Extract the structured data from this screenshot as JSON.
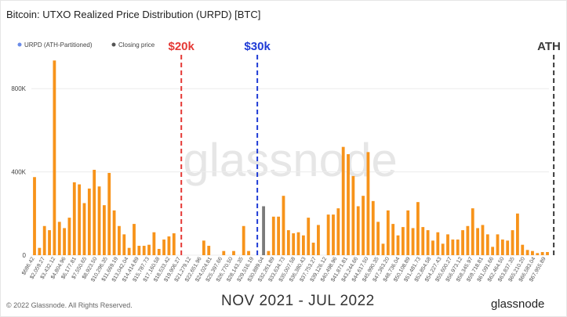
{
  "title": "Bitcoin: UTXO Realized Price Distribution (URPD) [BTC]",
  "footer": {
    "copyright": "© 2022 Glassnode. All Rights Reserved.",
    "period": "NOV 2021 - JUL 2022",
    "brand": "glassnode"
  },
  "watermark": "glassnode",
  "colors": {
    "bar": "#f7931a",
    "closing_bar": "#7a7a7a",
    "marker_20k": "#e53935",
    "marker_30k": "#1f3bd6",
    "marker_ath": "#3a3a3a",
    "legend_urpd": "#6a8be8",
    "legend_closing": "#555555",
    "grid": "#ececec",
    "watermark": "#e6e6e6"
  },
  "chart_data": {
    "type": "bar",
    "title": "Bitcoin: UTXO Realized Price Distribution (URPD) [BTC]",
    "xlabel": "",
    "ylabel": "",
    "ylim": [
      0,
      1000000
    ],
    "yticks": [
      0,
      400000,
      800000
    ],
    "ytick_labels": [
      "0",
      "400K",
      "800K"
    ],
    "grid": true,
    "legend_position": "top-left",
    "legend": [
      {
        "label": "URPD (ATH-Partitioned)",
        "color": "#6a8be8"
      },
      {
        "label": "Closing price",
        "color": "#555555"
      }
    ],
    "x_tick_labels": [
      "$686.42",
      "$2,059.27",
      "$3,432.12",
      "$4,804.96",
      "$6,177.81",
      "$7,550.65",
      "$8,923.50",
      "$10,296.35",
      "$11,669.19",
      "$13,042.04",
      "$14,414.89",
      "$15,787.73",
      "$17,160.58",
      "$18,533.42",
      "$19,906.27",
      "$21,279.12",
      "$22,651.96",
      "$24,024.81",
      "$25,397.66",
      "$26,770.50",
      "$28,143.35",
      "$29,516.19",
      "$30,889.04",
      "$32,261.89",
      "$33,634.73",
      "$35,007.58",
      "$36,380.43",
      "$37,753.27",
      "$39,126.12",
      "$40,498.96",
      "$41,871.81",
      "$43,244.66",
      "$44,617.50",
      "$45,990.35",
      "$47,363.20",
      "$48,736.04",
      "$50,108.89",
      "$51,481.73",
      "$52,854.58",
      "$54,227.43",
      "$55,600.27",
      "$56,973.12",
      "$58,345.97",
      "$59,718.81",
      "$61,091.66",
      "$62,464.50",
      "$63,837.35",
      "$65,210.20",
      "$66,583.04",
      "$67,955.89"
    ],
    "values": [
      375000,
      35000,
      140000,
      120000,
      935000,
      160000,
      130000,
      180000,
      350000,
      340000,
      250000,
      320000,
      410000,
      330000,
      240000,
      395000,
      215000,
      140000,
      100000,
      35000,
      150000,
      45000,
      45000,
      50000,
      110000,
      30000,
      75000,
      90000,
      105000,
      0,
      0,
      0,
      0,
      0,
      70000,
      45000,
      0,
      0,
      20000,
      0,
      20000,
      0,
      140000,
      20000,
      0,
      0,
      235000,
      20000,
      185000,
      185000,
      285000,
      120000,
      105000,
      110000,
      95000,
      180000,
      60000,
      145000,
      0,
      195000,
      195000,
      225000,
      520000,
      485000,
      380000,
      235000,
      285000,
      495000,
      260000,
      160000,
      55000,
      215000,
      150000,
      95000,
      135000,
      215000,
      130000,
      255000,
      135000,
      120000,
      70000,
      110000,
      55000,
      100000,
      75000,
      75000,
      120000,
      140000,
      225000,
      130000,
      145000,
      100000,
      40000,
      100000,
      75000,
      70000,
      120000,
      200000,
      50000,
      25000,
      20000,
      10000,
      15000,
      15000
    ],
    "closing_price_bar_index": 46,
    "markers": [
      {
        "label": "$20k",
        "color": "#e53935",
        "x_value": 20000
      },
      {
        "label": "$30k",
        "color": "#1f3bd6",
        "x_value": 30000
      },
      {
        "label": "ATH",
        "color": "#3a3a3a",
        "x_value": 69000
      }
    ]
  }
}
